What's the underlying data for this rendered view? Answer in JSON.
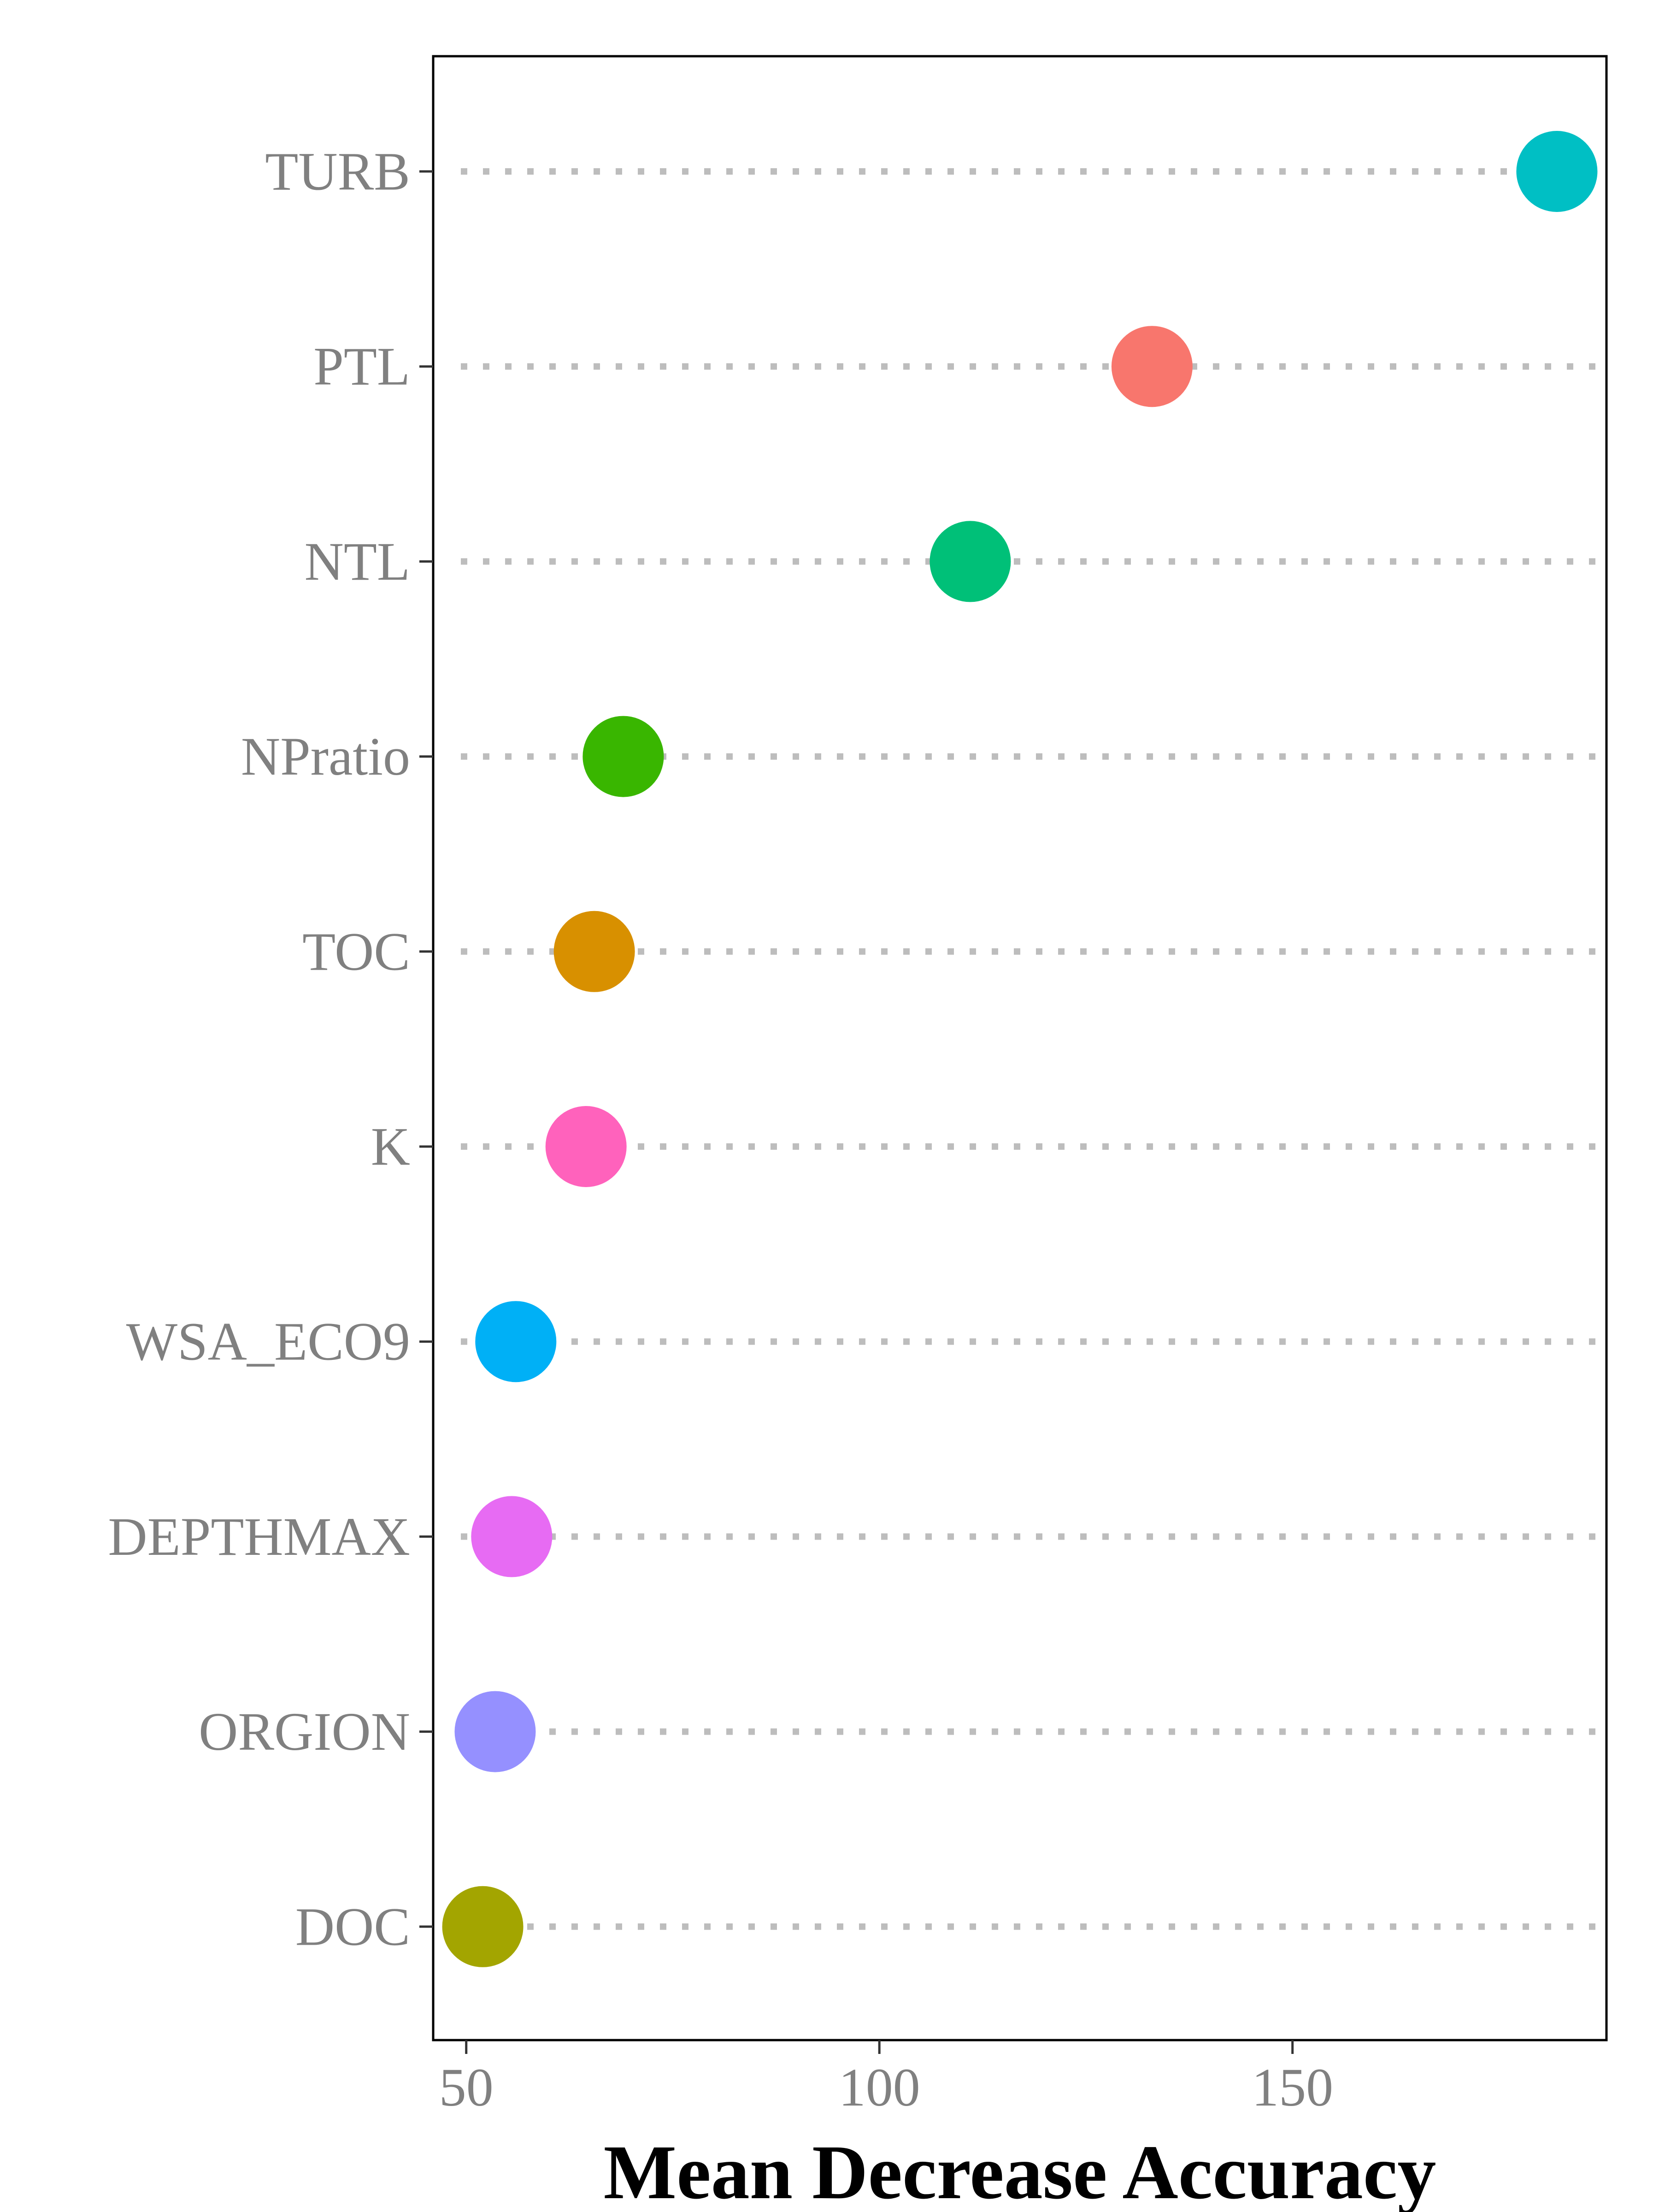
{
  "chart_data": {
    "type": "scatter",
    "xlabel": "Mean Decrease Accuracy",
    "ylabel": "",
    "xlim": [
      46,
      188
    ],
    "xticks": [
      "50",
      "100",
      "150"
    ],
    "grid": "dotted horizontal guide lines",
    "legend": "none",
    "categories": [
      "TURB",
      "PTL",
      "NTL",
      "NPratio",
      "TOC",
      "K",
      "WSA_ECO9",
      "DEPTHMAX",
      "ORGION",
      "DOC"
    ],
    "values": [
      182,
      133,
      111,
      69,
      65.5,
      64.5,
      56,
      55.5,
      53.5,
      52
    ],
    "colors": [
      "#00BFC4",
      "#F8766D",
      "#00C078",
      "#39B600",
      "#D89000",
      "#FF62BC",
      "#00B0F6",
      "#E76BF3",
      "#9590FF",
      "#A3A500"
    ]
  }
}
